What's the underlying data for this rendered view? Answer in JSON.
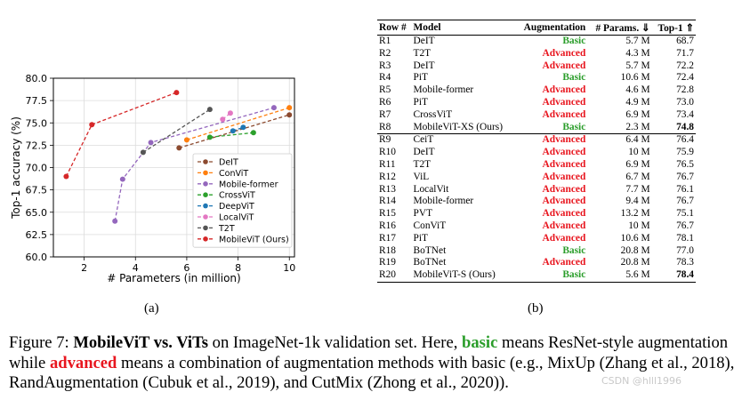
{
  "chart_data": {
    "type": "line",
    "xlabel": "# Parameters (in million)",
    "ylabel": "Top-1 accuracy (%)",
    "xlim": [
      0.8,
      10.2
    ],
    "ylim": [
      60.0,
      80.0
    ],
    "xticks": [
      "2",
      "4",
      "6",
      "8",
      "10"
    ],
    "yticks": [
      "60.0",
      "62.5",
      "65.0",
      "67.5",
      "70.0",
      "72.5",
      "75.0",
      "77.5",
      "80.0"
    ],
    "legend_position": "lower-right",
    "series": [
      {
        "name": "DeIT",
        "color": "#8c4a2f",
        "x": [
          5.7,
          10.0
        ],
        "y": [
          72.2,
          75.9
        ]
      },
      {
        "name": "ConViT",
        "color": "#ff7f0e",
        "x": [
          6.0,
          10.0
        ],
        "y": [
          73.1,
          76.7
        ]
      },
      {
        "name": "Mobile-former",
        "color": "#9467bd",
        "x": [
          3.2,
          3.5,
          4.6,
          9.4
        ],
        "y": [
          64.0,
          68.7,
          72.8,
          76.7
        ]
      },
      {
        "name": "CrossViT",
        "color": "#2ca02c",
        "x": [
          6.9,
          8.6
        ],
        "y": [
          73.4,
          73.9
        ]
      },
      {
        "name": "DeepViT",
        "color": "#1f77b4",
        "x": [
          7.8,
          8.2
        ],
        "y": [
          74.1,
          74.5
        ]
      },
      {
        "name": "LocalViT",
        "color": "#e377c2",
        "x": [
          7.4,
          7.7
        ],
        "y": [
          75.4,
          76.1
        ]
      },
      {
        "name": "T2T",
        "color": "#555555",
        "x": [
          4.3,
          6.9
        ],
        "y": [
          71.7,
          76.5
        ]
      },
      {
        "name": "MobileViT (Ours)",
        "color": "#d62728",
        "x": [
          1.3,
          2.3,
          5.6
        ],
        "y": [
          69.0,
          74.8,
          78.4
        ]
      }
    ]
  },
  "labels": {
    "a": "(a)",
    "b": "(b)"
  },
  "table": {
    "headers": {
      "row": "Row #",
      "model": "Model",
      "aug": "Augmentation",
      "params": "# Params. ⇓",
      "top1": "Top-1 ⇑"
    },
    "rows_top": [
      {
        "row": "R1",
        "model": "DeIT",
        "aug": "Basic",
        "params": "5.7 M",
        "top1": "68.7"
      },
      {
        "row": "R2",
        "model": "T2T",
        "aug": "Advanced",
        "params": "4.3 M",
        "top1": "71.7"
      },
      {
        "row": "R3",
        "model": "DeIT",
        "aug": "Advanced",
        "params": "5.7 M",
        "top1": "72.2"
      },
      {
        "row": "R4",
        "model": "PiT",
        "aug": "Basic",
        "params": "10.6 M",
        "top1": "72.4"
      },
      {
        "row": "R5",
        "model": "Mobile-former",
        "aug": "Advanced",
        "params": "4.6 M",
        "top1": "72.8"
      },
      {
        "row": "R6",
        "model": "PiT",
        "aug": "Advanced",
        "params": "4.9 M",
        "top1": "73.0"
      },
      {
        "row": "R7",
        "model": "CrossViT",
        "aug": "Advanced",
        "params": "6.9 M",
        "top1": "73.4"
      },
      {
        "row": "R8",
        "model": "MobileViT-XS (Ours)",
        "aug": "Basic",
        "params": "2.3 M",
        "top1": "74.8"
      }
    ],
    "rows_bottom": [
      {
        "row": "R9",
        "model": "CeiT",
        "aug": "Advanced",
        "params": "6.4 M",
        "top1": "76.4"
      },
      {
        "row": "R10",
        "model": "DeIT",
        "aug": "Advanced",
        "params": "10 M",
        "top1": "75.9"
      },
      {
        "row": "R11",
        "model": "T2T",
        "aug": "Advanced",
        "params": "6.9 M",
        "top1": "76.5"
      },
      {
        "row": "R12",
        "model": "ViL",
        "aug": "Advanced",
        "params": "6.7 M",
        "top1": "76.7"
      },
      {
        "row": "R13",
        "model": "LocalVit",
        "aug": "Advanced",
        "params": "7.7 M",
        "top1": "76.1"
      },
      {
        "row": "R14",
        "model": "Mobile-former",
        "aug": "Advanced",
        "params": "9.4 M",
        "top1": "76.7"
      },
      {
        "row": "R15",
        "model": "PVT",
        "aug": "Advanced",
        "params": "13.2 M",
        "top1": "75.1"
      },
      {
        "row": "R16",
        "model": "ConViT",
        "aug": "Advanced",
        "params": "10 M",
        "top1": "76.7"
      },
      {
        "row": "R17",
        "model": "PiT",
        "aug": "Advanced",
        "params": "10.6 M",
        "top1": "78.1"
      },
      {
        "row": "R18",
        "model": "BoTNet",
        "aug": "Basic",
        "params": "20.8 M",
        "top1": "77.0"
      },
      {
        "row": "R19",
        "model": "BoTNet",
        "aug": "Advanced",
        "params": "20.8 M",
        "top1": "78.3"
      },
      {
        "row": "R20",
        "model": "MobileViT-S (Ours)",
        "aug": "Basic",
        "params": "5.6 M",
        "top1": "78.4"
      }
    ]
  },
  "caption": {
    "prefix": "Figure 7: ",
    "title": "MobileViT vs. ViTs",
    "part1": " on ImageNet-1k validation set. Here, ",
    "basic_word": "basic",
    "part2": " means ResNet-style augmentation while ",
    "advanced_word": "advanced",
    "part3": " means a combination of augmentation methods with basic (e.g., MixUp (Zhang et al., 2018), RandAugmentation (Cubuk et al., 2019), and CutMix (Zhong et al., 2020))."
  },
  "watermark": "CSDN @hlll1996"
}
